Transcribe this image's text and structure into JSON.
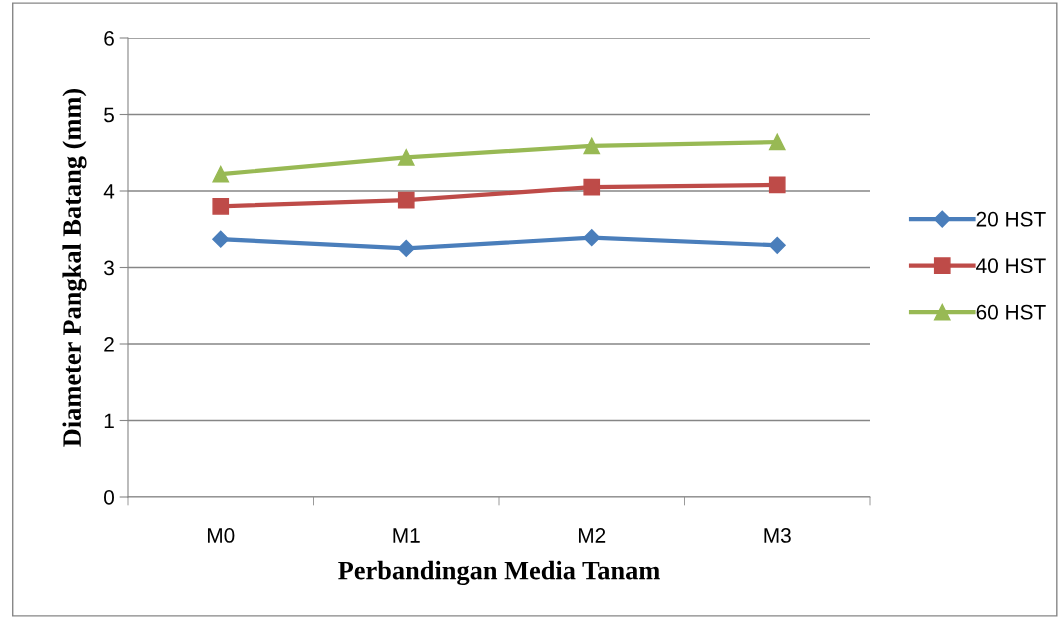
{
  "chart_data": {
    "type": "line",
    "xlabel": "Perbandingan Media Tanam",
    "ylabel": "Diameter Pangkal Batang (mm)",
    "categories": [
      "M0",
      "M1",
      "M2",
      "M3"
    ],
    "series": [
      {
        "name": "20 HST",
        "color": "#4a7ebb",
        "marker": "diamond",
        "values": [
          3.37,
          3.25,
          3.39,
          3.29
        ]
      },
      {
        "name": "40 HST",
        "color": "#be4b48",
        "marker": "square",
        "values": [
          3.8,
          3.88,
          4.05,
          4.08
        ]
      },
      {
        "name": "60 HST",
        "color": "#98b954",
        "marker": "triangle",
        "values": [
          4.22,
          4.44,
          4.59,
          4.64
        ]
      }
    ],
    "ylim": [
      0,
      6
    ],
    "yticks": [
      0,
      1,
      2,
      3,
      4,
      5,
      6
    ],
    "grid": "y",
    "legend": "right",
    "line_style": "solid"
  }
}
